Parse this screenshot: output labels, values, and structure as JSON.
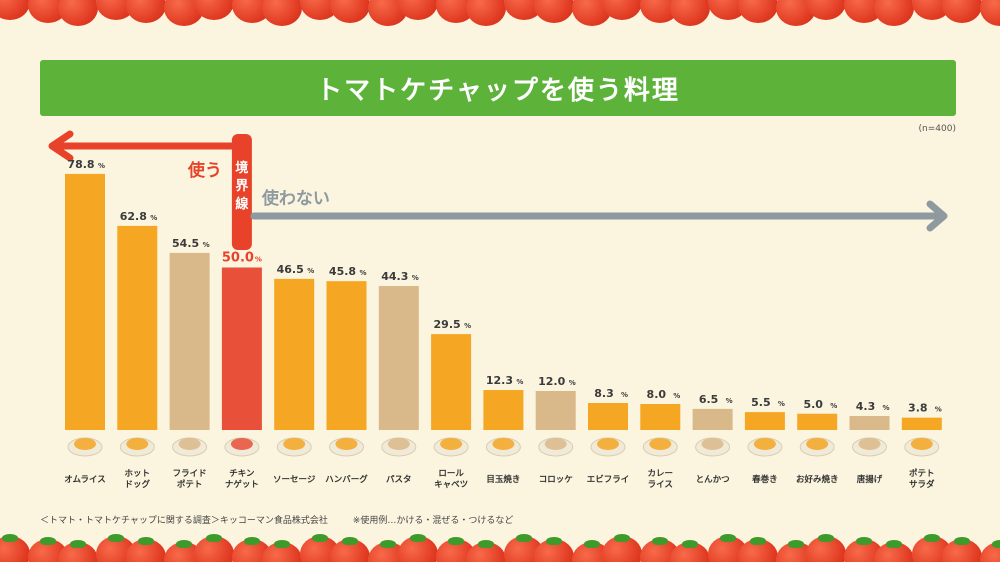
{
  "title": "トマトケチャップを使う料理",
  "n_note": "(n=400)",
  "labels": {
    "use": "使う",
    "boundary": [
      "境",
      "界",
      "線"
    ],
    "not_use": "使わない"
  },
  "footer": {
    "source": "＜トマト・トマトケチャップに関する調査＞キッコーマン食品株式会社",
    "note": "※使用例…かける・混ぜる・つけるなど"
  },
  "colors": {
    "title_bg": "#5db33a",
    "use_arrow": "#e8432a",
    "not_use_arrow": "#8e9aa0",
    "bar_orange": "#f5a623",
    "bar_tan": "#d9b98a",
    "bar_red": "#e8503a",
    "value_text": "#3b3b3b",
    "highlight_value": "#e8432a"
  },
  "chart_data": {
    "type": "bar",
    "unit": "%",
    "ylim": [
      0,
      100
    ],
    "boundary_value": 50.0,
    "categories": [
      [
        "オムライス"
      ],
      [
        "ホット",
        "ドッグ"
      ],
      [
        "フライド",
        "ポテト"
      ],
      [
        "チキン",
        "ナゲット"
      ],
      [
        "ソーセージ"
      ],
      [
        "ハンバーグ"
      ],
      [
        "パスタ"
      ],
      [
        "ロール",
        "キャベツ"
      ],
      [
        "目玉焼き"
      ],
      [
        "コロッケ"
      ],
      [
        "エビフライ"
      ],
      [
        "カレー",
        "ライス"
      ],
      [
        "とんかつ"
      ],
      [
        "春巻き"
      ],
      [
        "お好み焼き"
      ],
      [
        "唐揚げ"
      ],
      [
        "ポテト",
        "サラダ"
      ]
    ],
    "values": [
      78.8,
      62.8,
      54.5,
      50.0,
      46.5,
      45.8,
      44.3,
      29.5,
      12.3,
      12.0,
      8.3,
      8.0,
      6.5,
      5.5,
      5.0,
      4.3,
      3.8
    ],
    "value_labels": [
      "78.8",
      "62.8",
      "54.5",
      "50.0",
      "46.5",
      "45.8",
      "44.3",
      "29.5",
      "12.3",
      "12.0",
      "8.3",
      "8.0",
      "6.5",
      "5.5",
      "5.0",
      "4.3",
      "3.8"
    ],
    "bar_colors": [
      "orange",
      "orange",
      "tan",
      "red",
      "orange",
      "orange",
      "tan",
      "orange",
      "orange",
      "tan",
      "orange",
      "orange",
      "tan",
      "orange",
      "orange",
      "tan",
      "orange"
    ],
    "food_icons": [
      "omelette-rice-icon",
      "hotdog-icon",
      "french-fries-icon",
      "chicken-nugget-icon",
      "sausage-icon",
      "hamburg-steak-icon",
      "pasta-icon",
      "cabbage-roll-icon",
      "fried-egg-icon",
      "croquette-icon",
      "fried-shrimp-icon",
      "curry-rice-icon",
      "tonkatsu-icon",
      "spring-roll-icon",
      "okonomiyaki-icon",
      "karaage-icon",
      "potato-salad-icon"
    ]
  }
}
